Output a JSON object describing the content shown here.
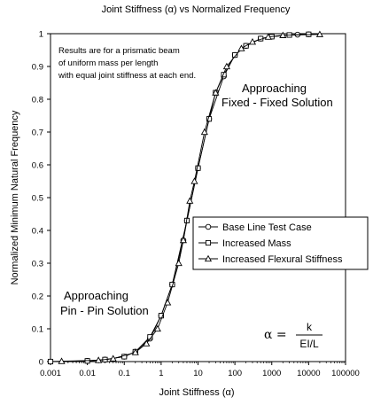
{
  "chart_data": {
    "type": "line",
    "title": "Joint Stiffness (α) vs Normalized Frequency",
    "xlabel": "Joint Stiffness (α)",
    "ylabel": "Normalized Minimum Natural Frequency",
    "xscale": "log",
    "xlim": [
      0.001,
      100000
    ],
    "ylim": [
      0,
      1
    ],
    "grid": false,
    "x_ticks": [
      "0.001",
      "0.01",
      "0.1",
      "1",
      "10",
      "100",
      "1000",
      "10000",
      "100000"
    ],
    "y_ticks": [
      "0",
      "0.1",
      "0.2",
      "0.3",
      "0.4",
      "0.5",
      "0.6",
      "0.7",
      "0.8",
      "0.9",
      "1"
    ],
    "legend_position": "center-right",
    "series": [
      {
        "name": "Base Line Test Case",
        "marker": "circle",
        "x": [
          0.001,
          0.01,
          0.03,
          0.1,
          0.2,
          0.5,
          1,
          2,
          4,
          5,
          10,
          20,
          50,
          100,
          200,
          500,
          1000,
          5000,
          10000
        ],
        "y": [
          0.0,
          0.002,
          0.006,
          0.015,
          0.03,
          0.07,
          0.14,
          0.235,
          0.37,
          0.43,
          0.59,
          0.74,
          0.87,
          0.935,
          0.963,
          0.985,
          0.991,
          0.997,
          0.998
        ]
      },
      {
        "name": "Increased Mass",
        "marker": "square",
        "x": [
          0.001,
          0.01,
          0.03,
          0.1,
          0.2,
          0.5,
          1,
          2,
          5,
          10,
          20,
          30,
          50,
          100,
          200,
          500,
          1000,
          3000,
          10000
        ],
        "y": [
          0.0,
          0.002,
          0.006,
          0.015,
          0.03,
          0.075,
          0.14,
          0.235,
          0.43,
          0.59,
          0.74,
          0.82,
          0.875,
          0.935,
          0.963,
          0.985,
          0.991,
          0.996,
          0.998
        ]
      },
      {
        "name": "Increased Flexural Stiffness",
        "marker": "triangle",
        "x": [
          0.002,
          0.02,
          0.05,
          0.2,
          0.4,
          0.8,
          1.5,
          3,
          4,
          6,
          8,
          15,
          30,
          60,
          150,
          300,
          800,
          2000,
          20000
        ],
        "y": [
          0.001,
          0.004,
          0.009,
          0.028,
          0.055,
          0.1,
          0.18,
          0.3,
          0.37,
          0.49,
          0.55,
          0.7,
          0.82,
          0.9,
          0.955,
          0.975,
          0.99,
          0.995,
          0.998
        ]
      }
    ],
    "annotations": {
      "note": [
        "Results are for a prismatic beam",
        "of uniform mass per length",
        "with equal joint stiffness at each end."
      ],
      "fixed": [
        "Approaching",
        "Fixed - Fixed Solution"
      ],
      "pin": [
        "Approaching",
        "Pin - Pin Solution"
      ],
      "formula": {
        "symbol": "α =",
        "numerator": "k",
        "denominator": "EI/L"
      }
    }
  }
}
